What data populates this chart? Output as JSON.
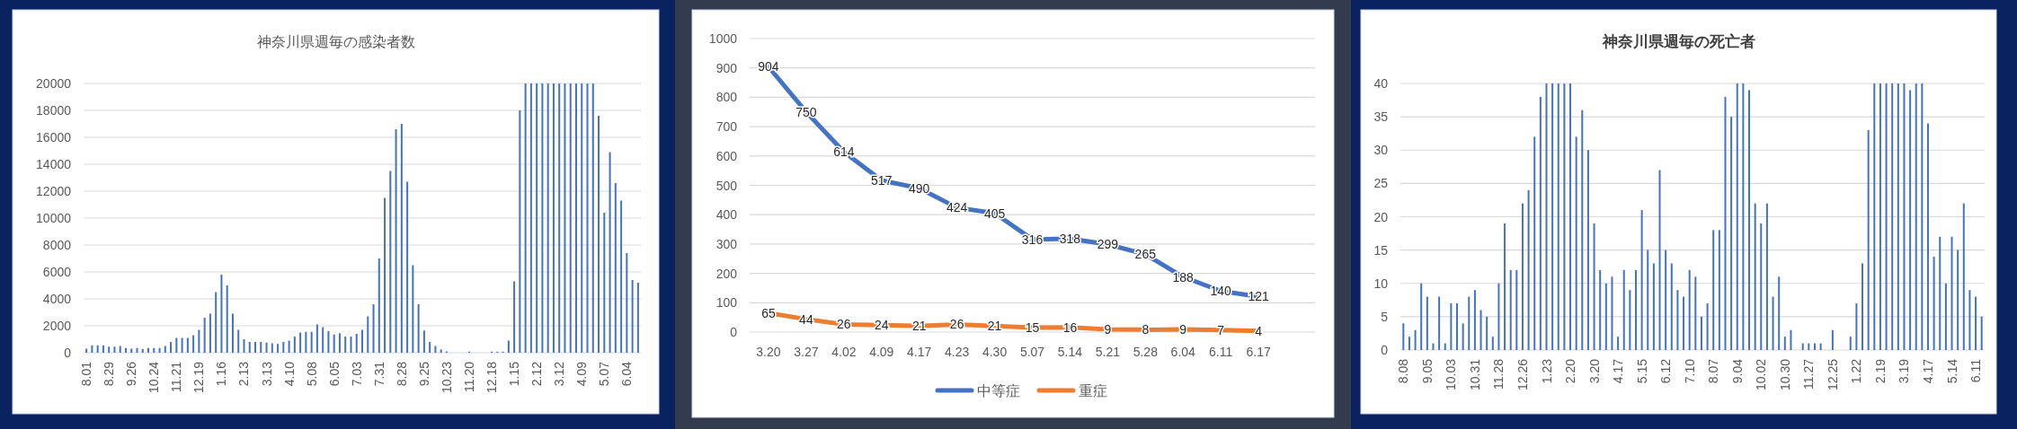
{
  "chart_data": [
    {
      "type": "bar",
      "title": "神奈川県週毎の感染者数",
      "color": "#4472c4",
      "ylim": [
        0,
        20000
      ],
      "yticks": [
        0,
        2000,
        4000,
        6000,
        8000,
        10000,
        12000,
        14000,
        16000,
        18000,
        20000
      ],
      "grid": "y",
      "categories": [
        "8.01",
        null,
        null,
        null,
        "8.29",
        null,
        null,
        null,
        "9.26",
        null,
        null,
        null,
        "10.24",
        null,
        null,
        null,
        "11.21",
        null,
        null,
        null,
        "12.19",
        null,
        null,
        null,
        "1.16",
        null,
        null,
        null,
        "2.13",
        null,
        null,
        null,
        "3.13",
        null,
        null,
        null,
        "4.10",
        null,
        null,
        null,
        "5.08",
        null,
        null,
        null,
        "6.05",
        null,
        null,
        null,
        "7.03",
        null,
        null,
        null,
        "7.31",
        null,
        null,
        null,
        "8.28",
        null,
        null,
        null,
        "9.25",
        null,
        null,
        null,
        "10.23",
        null,
        null,
        null,
        "11.20",
        null,
        null,
        null,
        "12.18",
        null,
        null,
        null,
        "1.15",
        null,
        null,
        null,
        "2.12",
        null,
        null,
        null,
        "3.12",
        null,
        null,
        null,
        "4.09",
        null,
        null,
        null,
        "5.07",
        null,
        null,
        null,
        "6.04",
        null,
        null
      ],
      "values": [
        300,
        550,
        550,
        550,
        450,
        450,
        500,
        350,
        300,
        350,
        280,
        350,
        350,
        350,
        500,
        800,
        1100,
        1100,
        1100,
        1300,
        1700,
        2600,
        2900,
        4500,
        5800,
        5000,
        2900,
        1700,
        1000,
        800,
        800,
        800,
        750,
        700,
        650,
        800,
        900,
        1200,
        1500,
        1550,
        1550,
        2100,
        1900,
        1600,
        1350,
        1450,
        1200,
        1200,
        1400,
        1700,
        2700,
        3600,
        7000,
        11500,
        13500,
        16600,
        17000,
        12700,
        6500,
        3600,
        1650,
        800,
        500,
        250,
        100,
        null,
        null,
        null,
        80,
        null,
        null,
        null,
        80,
        80,
        80,
        900,
        5300,
        18000,
        20000,
        20000,
        20000,
        20000,
        20000,
        20000,
        20000,
        20000,
        20000,
        20000,
        20000,
        20000,
        20000,
        17600,
        10400,
        14900,
        12600,
        11300,
        7400,
        5400,
        5200
      ]
    },
    {
      "type": "line",
      "categories": [
        "3.20",
        "3.27",
        "4.02",
        "4.09",
        "4.17",
        "4.23",
        "4.30",
        "5.07",
        "5.14",
        "5.21",
        "5.28",
        "6.04",
        "6.11",
        "6.17"
      ],
      "ylim": [
        0,
        1000
      ],
      "yticks": [
        0,
        100,
        200,
        300,
        400,
        500,
        600,
        700,
        800,
        900,
        1000
      ],
      "grid": "y",
      "legend": "bottom",
      "data_labels": true,
      "series": [
        {
          "name": "中等症",
          "color": "#4472c4",
          "values": [
            904,
            750,
            614,
            517,
            490,
            424,
            405,
            316,
            318,
            299,
            265,
            188,
            140,
            121
          ]
        },
        {
          "name": "重症",
          "color": "#ed7d31",
          "values": [
            65,
            44,
            26,
            24,
            21,
            26,
            21,
            15,
            16,
            9,
            8,
            9,
            7,
            4
          ]
        }
      ]
    },
    {
      "type": "bar",
      "title": "神奈川県週毎の死亡者",
      "color": "#4472c4",
      "ylim": [
        0,
        40
      ],
      "yticks": [
        0,
        5,
        10,
        15,
        20,
        25,
        30,
        35,
        40
      ],
      "grid": "y",
      "categories": [
        "8.08",
        null,
        null,
        null,
        "9.05",
        null,
        null,
        null,
        "10.03",
        null,
        null,
        null,
        "10.31",
        null,
        null,
        null,
        "11.28",
        null,
        null,
        null,
        "12.26",
        null,
        null,
        null,
        "1.23",
        null,
        null,
        null,
        "2.20",
        null,
        null,
        null,
        "3.20",
        null,
        null,
        null,
        "4.17",
        null,
        null,
        null,
        "5.15",
        null,
        null,
        null,
        "6.12",
        null,
        null,
        null,
        "7.10",
        null,
        null,
        null,
        "8.07",
        null,
        null,
        null,
        "9.04",
        null,
        null,
        null,
        "10.02",
        null,
        null,
        null,
        "10.30",
        null,
        null,
        null,
        "11.27",
        null,
        null,
        null,
        "12.25",
        null,
        null,
        null,
        "1.22",
        null,
        null,
        null,
        "2.19",
        null,
        null,
        null,
        "3.19",
        null,
        null,
        null,
        "4.17",
        null,
        null,
        null,
        "5.14",
        null,
        null,
        null,
        "6.11",
        null
      ],
      "values": [
        4,
        2,
        3,
        10,
        8,
        1,
        8,
        1,
        7,
        7,
        4,
        8,
        9,
        6,
        5,
        2,
        10,
        19,
        12,
        12,
        22,
        24,
        32,
        38,
        40,
        40,
        40,
        40,
        40,
        32,
        36,
        30,
        19,
        12,
        10,
        11,
        2,
        12,
        9,
        12,
        21,
        15,
        13,
        27,
        15,
        13,
        9,
        8,
        12,
        11,
        5,
        7,
        18,
        18,
        38,
        35,
        40,
        40,
        39,
        22,
        19,
        22,
        8,
        11,
        2,
        3,
        0,
        1,
        1,
        1,
        1,
        0,
        3,
        0,
        0,
        2,
        7,
        13,
        33,
        40,
        40,
        40,
        40,
        40,
        40,
        39,
        40,
        40,
        34,
        14,
        17,
        10,
        17,
        15,
        22,
        9,
        8,
        5
      ]
    }
  ]
}
